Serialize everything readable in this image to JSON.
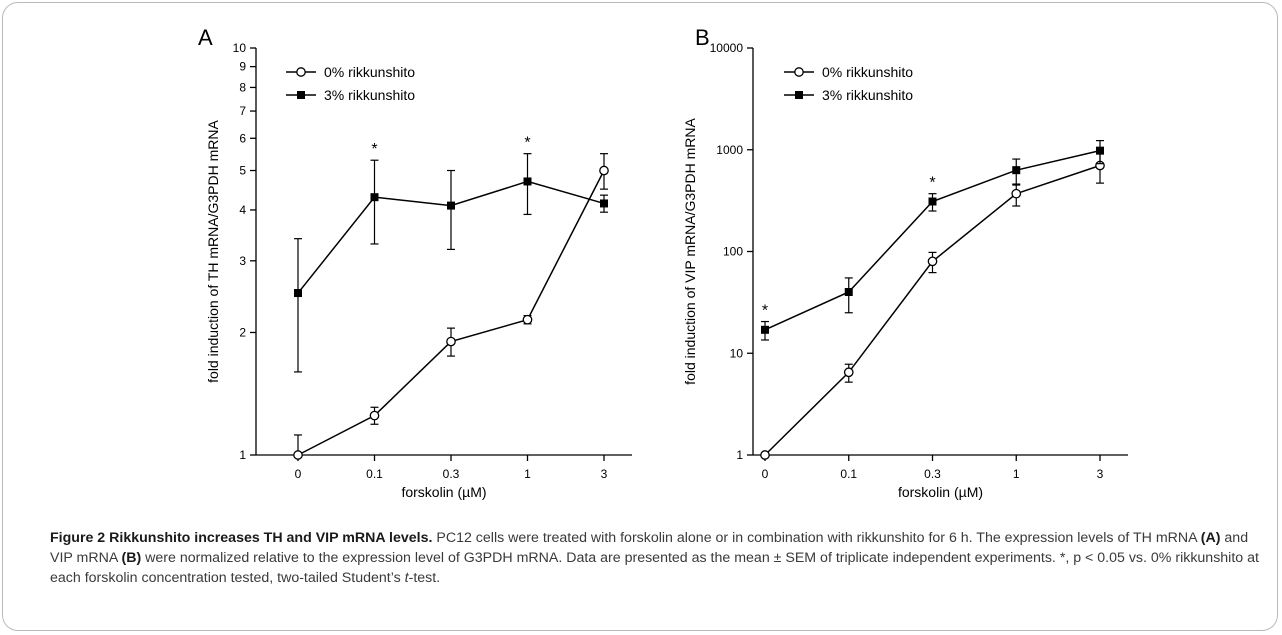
{
  "figure": {
    "caption": {
      "label": "Figure 2",
      "title": "Rikkunshito increases TH and VIP mRNA levels.",
      "text_1": "PC12 cells were treated with forskolin alone or in combination with rikkunshito for 6 h. The expression levels of TH mRNA",
      "bold_a": "(A)",
      "text_2": "and VIP mRNA",
      "bold_b": "(B)",
      "text_3": "were normalized relative to the expression level of G3PDH mRNA. Data are presented as the mean ± SEM of triplicate independent experiments. *, p < 0.05 vs. 0% rikkunshito at each forskolin concentration tested, two-tailed Student’s",
      "italic_t": "t",
      "text_4": "-test."
    }
  },
  "chart_data": [
    {
      "panel": "A",
      "type": "line",
      "xlabel": "forskolin (µM)",
      "ylabel": "fold induction of TH mRNA/G3PDH mRNA",
      "y_scale": "log",
      "ylim": [
        1,
        10
      ],
      "y_ticks": [
        "1",
        "2",
        "3",
        "4",
        "5",
        "6",
        "7",
        "8",
        "9",
        "10"
      ],
      "y_tick_values": [
        1,
        2,
        3,
        4,
        5,
        6,
        7,
        8,
        9,
        10
      ],
      "categories": [
        "0",
        "0.1",
        "0.3",
        "1",
        "3"
      ],
      "legend_position": "top-left",
      "series": [
        {
          "name": "0% rikkunshito",
          "marker": "open-circle",
          "values": [
            1.0,
            1.25,
            1.9,
            2.15,
            5.0
          ],
          "err": [
            0.12,
            0.06,
            0.15,
            0.05,
            0.5
          ]
        },
        {
          "name": "3% rikkunshito",
          "marker": "filled-square",
          "values": [
            2.5,
            4.3,
            4.1,
            4.7,
            4.15
          ],
          "err": [
            0.9,
            1.0,
            0.9,
            0.8,
            0.2
          ]
        }
      ],
      "significance": [
        {
          "category": "0.1",
          "label": "*"
        },
        {
          "category": "1",
          "label": "*"
        }
      ]
    },
    {
      "panel": "B",
      "type": "line",
      "xlabel": "forskolin (µM)",
      "ylabel": "fold induction of VIP mRNA/G3PDH mRNA",
      "y_scale": "log",
      "ylim": [
        1,
        10000
      ],
      "y_ticks": [
        "1",
        "10",
        "100",
        "1000",
        "10000"
      ],
      "y_tick_values": [
        1,
        10,
        100,
        1000,
        10000
      ],
      "categories": [
        "0",
        "0.1",
        "0.3",
        "1",
        "3"
      ],
      "legend_position": "top-left",
      "series": [
        {
          "name": "0% rikkunshito",
          "marker": "open-circle",
          "values": [
            1.0,
            6.5,
            80,
            370,
            700
          ],
          "err": [
            0.05,
            1.3,
            18,
            90,
            230
          ]
        },
        {
          "name": "3% rikkunshito",
          "marker": "filled-square",
          "values": [
            17,
            40,
            310,
            630,
            980
          ],
          "err": [
            3.5,
            15,
            60,
            180,
            250
          ]
        }
      ],
      "significance": [
        {
          "category": "0",
          "label": "*"
        },
        {
          "category": "0.3",
          "label": "*"
        }
      ]
    }
  ]
}
